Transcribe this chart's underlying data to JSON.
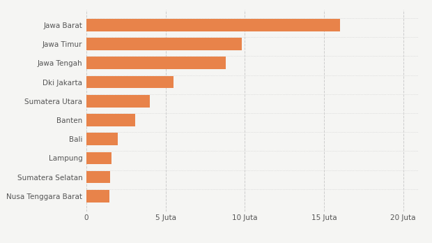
{
  "categories": [
    "Nusa Tenggara Barat",
    "Sumatera Selatan",
    "Lampung",
    "Bali",
    "Banten",
    "Sumatera Utara",
    "Dki Jakarta",
    "Jawa Tengah",
    "Jawa Timur",
    "Jawa Barat"
  ],
  "values": [
    1.45,
    1.5,
    1.6,
    2.0,
    3.1,
    4.0,
    5.5,
    8.8,
    9.8,
    16.0
  ],
  "bar_color": "#E8834A",
  "background_color": "#F5F5F3",
  "xlim": [
    0,
    21
  ],
  "xticks": [
    0,
    5,
    10,
    15,
    20
  ],
  "xtick_labels": [
    "0",
    "5 Juta",
    "10 Juta",
    "15 Juta",
    "20 Juta"
  ],
  "bar_height": 0.65,
  "label_fontsize": 7.5,
  "tick_fontsize": 7.5,
  "grid_color": "#CCCCCC",
  "text_color": "#555555"
}
